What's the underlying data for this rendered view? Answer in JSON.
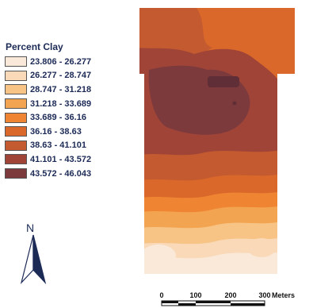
{
  "legend": {
    "title": "Percent Clay",
    "classes": [
      {
        "label": "23.806 - 26.277",
        "color": "#fae9d9"
      },
      {
        "label": "26.277 - 28.747",
        "color": "#f9d9b8"
      },
      {
        "label": "28.747 - 31.218",
        "color": "#f7c486"
      },
      {
        "label": "31.218 - 33.689",
        "color": "#f3a450"
      },
      {
        "label": "33.689 - 36.16",
        "color": "#ef8532"
      },
      {
        "label": "36.16 - 38.63",
        "color": "#d9682a"
      },
      {
        "label": "38.63 - 41.101",
        "color": "#c35a30"
      },
      {
        "label": "41.101 - 43.572",
        "color": "#a04438"
      },
      {
        "label": "43.572 - 46.043",
        "color": "#7d3a3c"
      }
    ]
  },
  "north_arrow": {
    "label": "N"
  },
  "scale_bar": {
    "ticks": [
      "0",
      "100",
      "200",
      "300"
    ],
    "unit": "Meters"
  }
}
